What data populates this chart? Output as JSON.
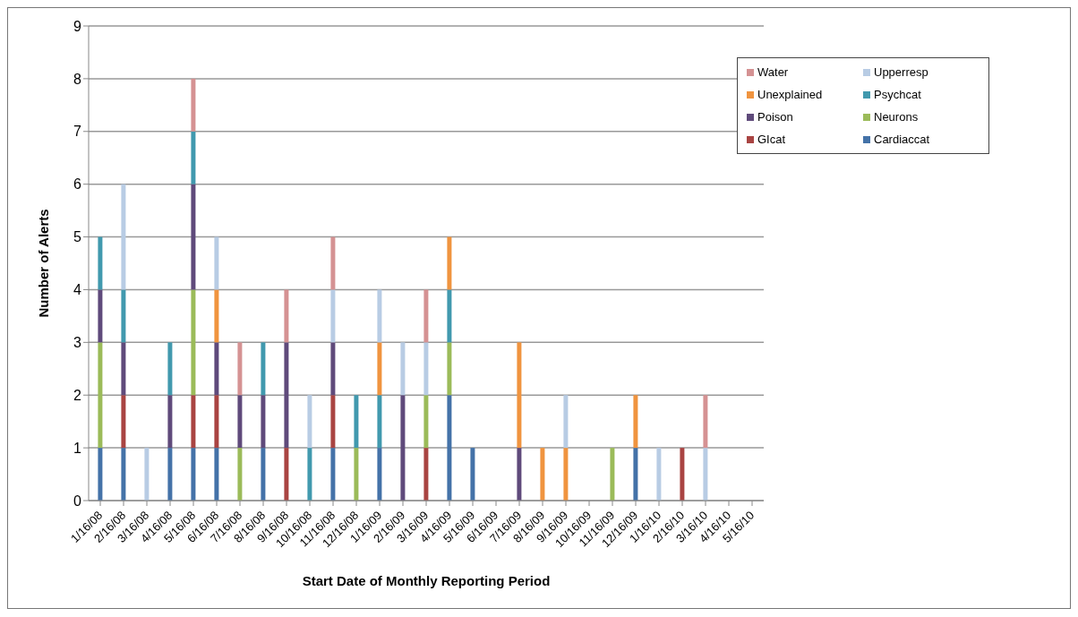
{
  "chart_data": {
    "type": "bar",
    "stacked": true,
    "xlabel": "Start Date of Monthly Reporting Period",
    "ylabel": "Number of Alerts",
    "categories": [
      "1/16/08",
      "2/16/08",
      "3/16/08",
      "4/16/08",
      "5/16/08",
      "6/16/08",
      "7/16/08",
      "8/16/08",
      "9/16/08",
      "10/16/08",
      "11/16/08",
      "12/16/08",
      "1/16/09",
      "2/16/09",
      "3/16/09",
      "4/16/09",
      "5/16/09",
      "6/16/09",
      "7/16/09",
      "8/16/09",
      "9/16/09",
      "10/16/09",
      "11/16/09",
      "12/16/09",
      "1/16/10",
      "2/16/10",
      "3/16/10",
      "4/16/10",
      "5/16/10"
    ],
    "series": [
      {
        "name": "Cardiaccat",
        "color": "#4472a8",
        "values": [
          1,
          1,
          0,
          1,
          1,
          1,
          0,
          1,
          0,
          0,
          1,
          0,
          1,
          0,
          0,
          2,
          1,
          0,
          0,
          0,
          0,
          0,
          0,
          1,
          0,
          0,
          0,
          0,
          0
        ]
      },
      {
        "name": "GIcat",
        "color": "#a94442",
        "values": [
          0,
          1,
          0,
          0,
          1,
          1,
          0,
          0,
          1,
          0,
          1,
          0,
          0,
          0,
          1,
          0,
          0,
          0,
          0,
          0,
          0,
          0,
          0,
          0,
          0,
          1,
          0,
          0,
          0
        ]
      },
      {
        "name": "Neurons",
        "color": "#9bbb59",
        "values": [
          2,
          0,
          0,
          0,
          2,
          0,
          1,
          0,
          0,
          0,
          0,
          1,
          0,
          0,
          1,
          1,
          0,
          0,
          0,
          0,
          0,
          0,
          1,
          0,
          0,
          0,
          0,
          0,
          0
        ]
      },
      {
        "name": "Poison",
        "color": "#5f4a7b",
        "values": [
          1,
          1,
          0,
          1,
          2,
          1,
          1,
          1,
          2,
          0,
          1,
          0,
          0,
          2,
          0,
          0,
          0,
          0,
          1,
          0,
          0,
          0,
          0,
          0,
          0,
          0,
          0,
          0,
          0
        ]
      },
      {
        "name": "Psychcat",
        "color": "#4199ae",
        "values": [
          1,
          1,
          0,
          1,
          1,
          0,
          0,
          1,
          0,
          1,
          0,
          1,
          1,
          0,
          0,
          1,
          0,
          0,
          0,
          0,
          0,
          0,
          0,
          0,
          0,
          0,
          0,
          0,
          0
        ]
      },
      {
        "name": "Unexplained",
        "color": "#f0943f",
        "values": [
          0,
          0,
          0,
          0,
          0,
          1,
          0,
          0,
          0,
          0,
          0,
          0,
          1,
          0,
          0,
          1,
          0,
          0,
          2,
          1,
          1,
          0,
          0,
          1,
          0,
          0,
          0,
          0,
          0
        ]
      },
      {
        "name": "Upperresp",
        "color": "#b8cce4",
        "values": [
          0,
          2,
          1,
          0,
          0,
          1,
          0,
          0,
          0,
          1,
          1,
          0,
          1,
          1,
          1,
          0,
          0,
          0,
          0,
          0,
          1,
          0,
          0,
          0,
          1,
          0,
          1,
          0,
          0
        ]
      },
      {
        "name": "Water",
        "color": "#d59293",
        "values": [
          0,
          0,
          0,
          0,
          1,
          0,
          1,
          0,
          1,
          0,
          1,
          0,
          0,
          0,
          1,
          0,
          0,
          0,
          0,
          0,
          0,
          0,
          0,
          0,
          0,
          0,
          1,
          0,
          0
        ]
      }
    ],
    "ylim": [
      0,
      9
    ],
    "yticks": [
      0,
      1,
      2,
      3,
      4,
      5,
      6,
      7,
      8,
      9
    ],
    "grid": "y",
    "legend": "top right"
  }
}
